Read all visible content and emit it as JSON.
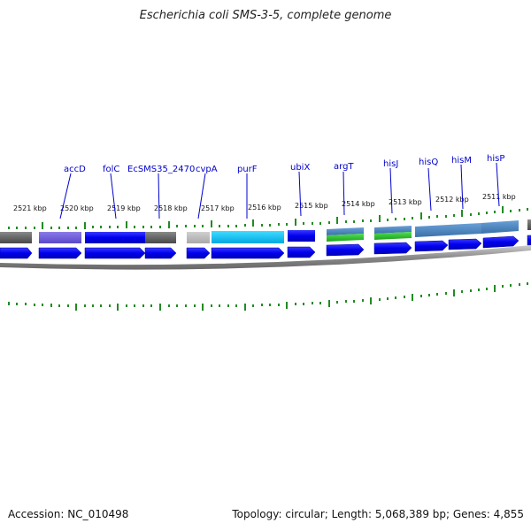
{
  "title": "Escherichia coli SMS-3-5, complete genome",
  "accession": "Accession: NC_010498",
  "topology": "Topology: circular; Length: 5,068,389 bp; Genes: 4,855",
  "colors": {
    "gene_label": "#0000cc",
    "tick": "#228b22",
    "track_gray": "#666666",
    "backbone": "#888888",
    "arrow": "#0000ee"
  },
  "gene_labels": [
    "accD",
    "folC",
    "EcSMS35_2470",
    "cvpA",
    "purF",
    "ubiX",
    "argT",
    "hisJ",
    "hisQ",
    "hisM",
    "hisP"
  ],
  "kbp_labels": [
    "2521 kbp",
    "2520 kbp",
    "2519 kbp",
    "2518 kbp",
    "2517 kbp",
    "2516 kbp",
    "2515 kbp",
    "2514 kbp",
    "2513 kbp",
    "2512 kbp",
    "2511 kbp"
  ]
}
